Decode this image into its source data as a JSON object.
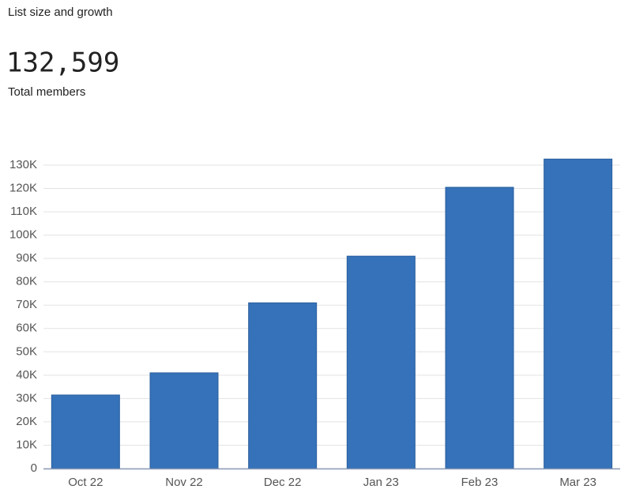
{
  "header": {
    "title": "List size and growth",
    "total": "132,599",
    "total_label": "Total members"
  },
  "chart_data": {
    "type": "bar",
    "categories": [
      "Oct 22",
      "Nov 22",
      "Dec 22",
      "Jan 23",
      "Feb 23",
      "Mar 23"
    ],
    "values": [
      31500,
      41000,
      71000,
      91000,
      120500,
      132599
    ],
    "color": "#3572b9",
    "ylim": [
      0,
      130000
    ],
    "yticks": [
      0,
      {
        "value": 10000,
        "label": "10K"
      },
      {
        "value": 20000,
        "label": "20K"
      },
      {
        "value": 30000,
        "label": "30K"
      },
      {
        "value": 40000,
        "label": "40K"
      },
      {
        "value": 50000,
        "label": "50K"
      },
      {
        "value": 60000,
        "label": "60K"
      },
      {
        "value": 70000,
        "label": "70K"
      },
      {
        "value": 80000,
        "label": "80K"
      },
      {
        "value": 90000,
        "label": "90K"
      },
      {
        "value": 100000,
        "label": "100K"
      },
      {
        "value": 110000,
        "label": "110K"
      },
      {
        "value": 120000,
        "label": "120K"
      },
      {
        "value": 130000,
        "label": "130K"
      }
    ],
    "grid": true
  }
}
